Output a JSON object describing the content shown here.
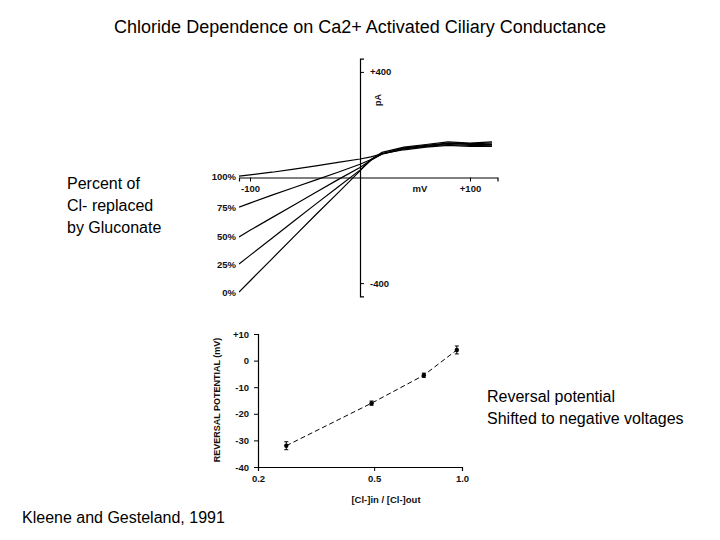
{
  "chart_data": [
    {
      "type": "line",
      "title": "Chloride Dependence on Ca2+ Activated Ciliary Conductance",
      "x_label": "mV",
      "y_label": "pA",
      "annotation": [
        "Percent of",
        "Cl- replaced",
        "by Gluconate"
      ],
      "x": [
        -110,
        -100,
        -80,
        -60,
        -40,
        -20,
        0,
        10,
        20,
        40,
        60,
        80,
        100,
        120
      ],
      "series": [
        {
          "name": "100%",
          "color": "#000000",
          "line_style": "solid",
          "values": [
            5,
            10,
            20,
            32,
            44,
            57,
            70,
            78,
            90,
            105,
            115,
            122,
            118,
            118
          ]
        },
        {
          "name": "75%",
          "color": "#000000",
          "line_style": "solid",
          "values": [
            -112,
            -97,
            -67,
            -38,
            -9,
            20,
            50,
            68,
            88,
            108,
            118,
            125,
            122,
            120
          ]
        },
        {
          "name": "50%",
          "color": "#000000",
          "line_style": "solid",
          "values": [
            -225,
            -200,
            -152,
            -104,
            -56,
            -8,
            38,
            66,
            90,
            110,
            120,
            128,
            125,
            125
          ]
        },
        {
          "name": "25%",
          "color": "#000000",
          "line_style": "solid",
          "values": [
            -328,
            -295,
            -230,
            -165,
            -100,
            -36,
            28,
            65,
            90,
            112,
            122,
            130,
            128,
            130
          ]
        },
        {
          "name": "0%",
          "color": "#000000",
          "line_style": "solid",
          "values": [
            -434,
            -392,
            -308,
            -224,
            -140,
            -58,
            25,
            68,
            95,
            115,
            125,
            135,
            130,
            135
          ]
        }
      ],
      "xlim": [
        -110,
        125
      ],
      "xticks": [
        {
          "value": -100,
          "label": "-100"
        },
        {
          "value": 100,
          "label": "+100"
        }
      ],
      "ylim": [
        -450,
        450
      ],
      "yticks": [
        {
          "value": 400,
          "label": "+400"
        },
        {
          "value": -400,
          "label": "-400"
        }
      ]
    },
    {
      "type": "line",
      "x_label": "[Cl-]in / [Cl-]out",
      "y_label": "REVERSAL POTENTIAL (mV)",
      "annotation": [
        "Reversal potential",
        "Shifted to negative voltages"
      ],
      "source": "Kleene and Gesteland, 1991",
      "log": "x",
      "x": [
        0.25,
        0.49,
        0.74,
        0.96
      ],
      "series": [
        {
          "color": "#000000",
          "marker": "circle",
          "line_style": "dashed",
          "values": [
            -32,
            -16,
            -5.5,
            4
          ],
          "errors": [
            1.5,
            0.8,
            0.8,
            1.5
          ]
        }
      ],
      "xlim": [
        0.2,
        1
      ],
      "xticks": [
        0.2,
        0.5,
        {
          "value": 1,
          "label": "1.0"
        }
      ],
      "ylim": [
        -40,
        10
      ],
      "yticks": [
        {
          "value": 10,
          "label": "+10"
        },
        0,
        -10,
        -20,
        -30,
        -40
      ]
    }
  ]
}
